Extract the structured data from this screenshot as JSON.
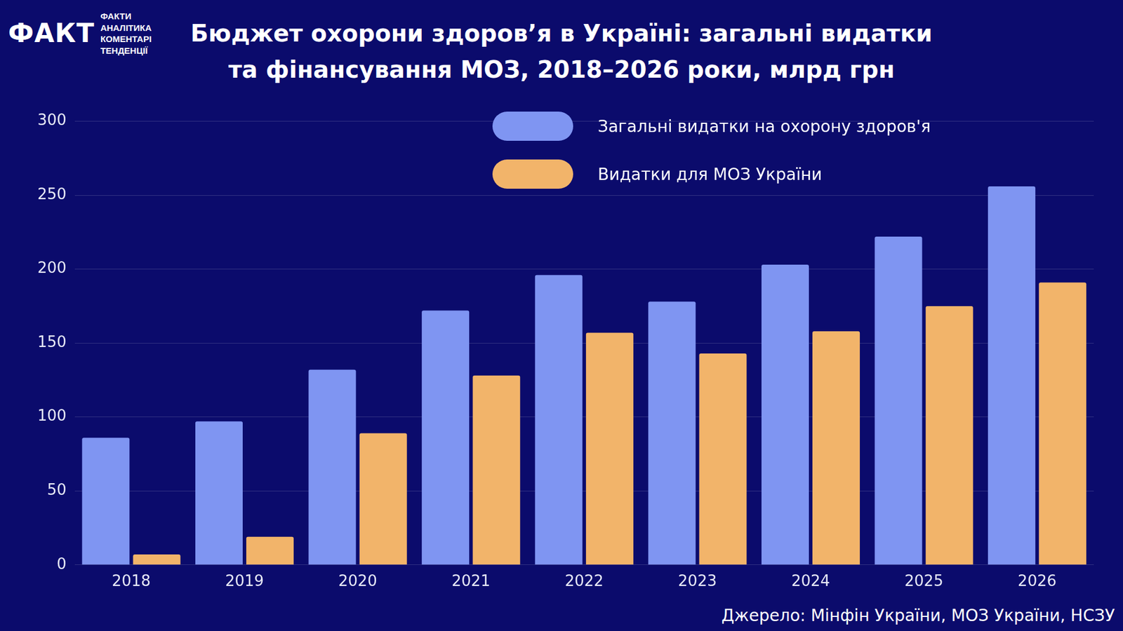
{
  "chart_data": {
    "type": "bar",
    "title": "Бюджет охорони здоров’я в Україні: загальні видатки та фінансування МОЗ, 2018–2026 роки, млрд грн",
    "logo": "ФАКТ",
    "logo_lines": [
      "ФАКТИ",
      "АНАЛІТИКА",
      "КОМЕНТАРІ",
      "ТЕНДЕНЦІЇ"
    ],
    "source": "Джерело: Мінфін України, МОЗ України, НСЗУ",
    "categories": [
      "2018",
      "2019",
      "2020",
      "2021",
      "2022",
      "2023",
      "2024",
      "2025",
      "2026"
    ],
    "series": [
      {
        "name": "Загальні видатки на охорону здоров'я",
        "color": "#7f95f2",
        "values": [
          86,
          97,
          132,
          172,
          196,
          178,
          203,
          222,
          256
        ]
      },
      {
        "name": "Видатки для МОЗ України",
        "color": "#f2b46a",
        "values": [
          7,
          19,
          89,
          128,
          157,
          143,
          158,
          175,
          191
        ]
      }
    ],
    "ylim": [
      0,
      300
    ],
    "yticks": [
      0,
      50,
      100,
      150,
      200,
      250,
      300
    ],
    "grid": true,
    "legend": "upper right"
  }
}
